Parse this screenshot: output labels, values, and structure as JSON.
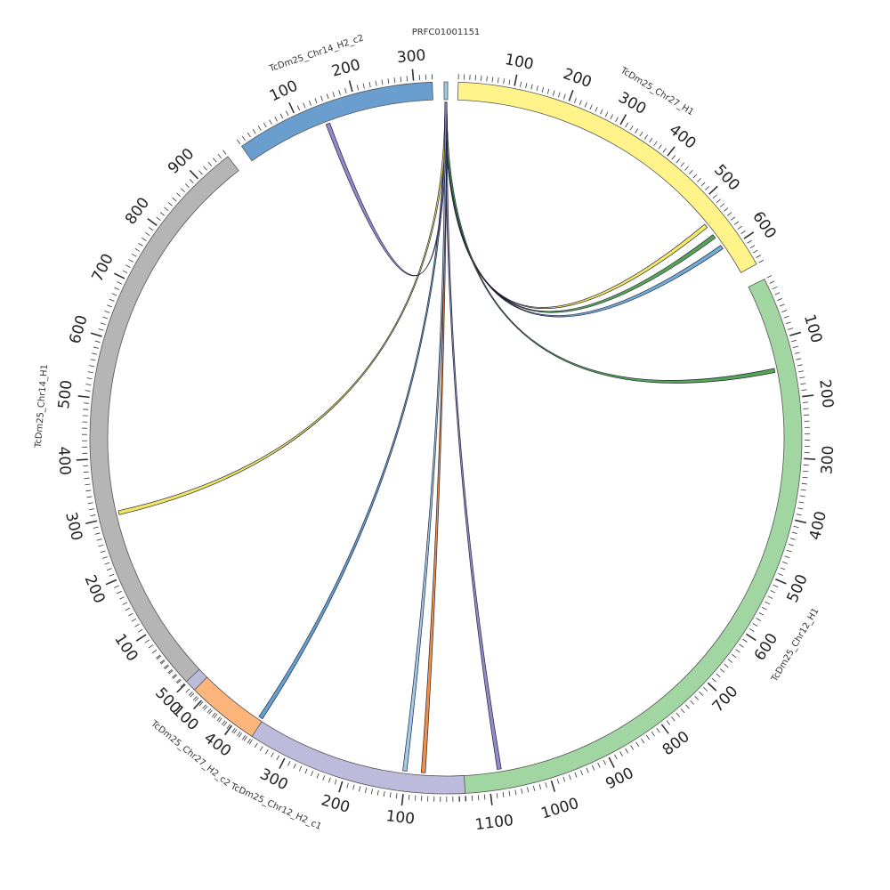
{
  "chart_data": {
    "type": "circos",
    "segments": [
      {
        "name": "PRFC01001151",
        "length": 6,
        "color": "#9ecae1"
      },
      {
        "name": "TcDm25_Chr27_H1",
        "length": 650,
        "color": "#fff38a"
      },
      {
        "name": "TcDm25_Chr12_H1",
        "length": 1150,
        "color": "#a1d6a3"
      },
      {
        "name": "TcDm25_Chr12_H2_c1",
        "length": 560,
        "color": "#bcbbdc"
      },
      {
        "name": "TcDm25_Chr27_H2_c2",
        "length": 120,
        "color": "#fdb57b"
      },
      {
        "name": "TcDm25_Chr14_H1",
        "length": 960,
        "color": "#b5b5b5"
      },
      {
        "name": "TcDm25_Chr14_H2_c2",
        "length": 330,
        "color": "#6a9ecf"
      }
    ],
    "tick_labels": {
      "TcDm25_Chr27_H1": [
        "100",
        "200",
        "300",
        "400",
        "500",
        "600"
      ],
      "TcDm25_Chr12_H1": [
        "100",
        "200",
        "300",
        "400",
        "500",
        "600",
        "700",
        "800",
        "900",
        "1000",
        "1100"
      ],
      "TcDm25_Chr12_H2_c1": [
        "100",
        "200",
        "300",
        "400",
        "500"
      ],
      "TcDm25_Chr27_H2_c2": [
        "100"
      ],
      "TcDm25_Chr14_H1": [
        "100",
        "200",
        "300",
        "400",
        "500",
        "600",
        "700",
        "800",
        "900"
      ],
      "TcDm25_Chr14_H2_c2": [
        "100",
        "200",
        "300"
      ]
    },
    "links": [
      {
        "from": "PRFC01001151",
        "from_pos": 3,
        "to": "TcDm25_Chr27_H1",
        "to_pos": 540,
        "color": "#f2e85c"
      },
      {
        "from": "PRFC01001151",
        "from_pos": 3,
        "to": "TcDm25_Chr27_H1",
        "to_pos": 565,
        "color": "#4fa04f"
      },
      {
        "from": "PRFC01001151",
        "from_pos": 3,
        "to": "TcDm25_Chr27_H1",
        "to_pos": 590,
        "color": "#6aa8d8"
      },
      {
        "from": "PRFC01001151",
        "from_pos": 3,
        "to": "TcDm25_Chr12_H1",
        "to_pos": 150,
        "color": "#4aa24a"
      },
      {
        "from": "PRFC01001151",
        "from_pos": 3,
        "to": "TcDm25_Chr12_H1",
        "to_pos": 1080,
        "color": "#8a84c8"
      },
      {
        "from": "PRFC01001151",
        "from_pos": 3,
        "to": "TcDm25_Chr12_H2_c1",
        "to_pos": 70,
        "color": "#f28a3c"
      },
      {
        "from": "PRFC01001151",
        "from_pos": 3,
        "to": "TcDm25_Chr12_H2_c1",
        "to_pos": 102,
        "color": "#9ac6e8"
      },
      {
        "from": "PRFC01001151",
        "from_pos": 3,
        "to": "TcDm25_Chr27_H2_c2",
        "to_pos": 5,
        "color": "#5a9ccf"
      },
      {
        "from": "PRFC01001151",
        "from_pos": 3,
        "to": "TcDm25_Chr14_H1",
        "to_pos": 305,
        "color": "#eee45a"
      },
      {
        "from": "PRFC01001151",
        "from_pos": 3,
        "to": "TcDm25_Chr14_H2_c2",
        "to_pos": 145,
        "color": "#8a84c8"
      }
    ]
  }
}
